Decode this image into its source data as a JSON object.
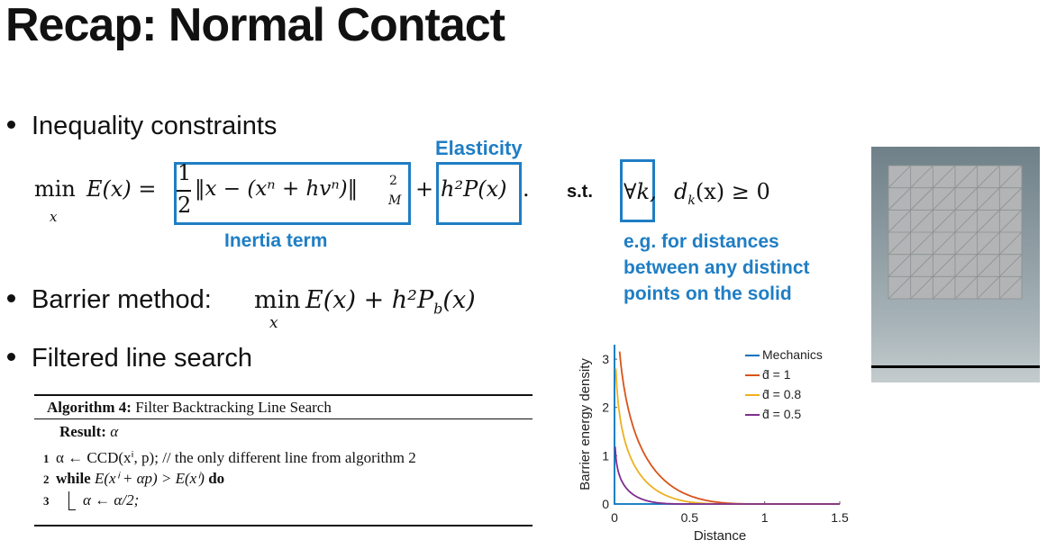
{
  "slide": {
    "title": "Recap: Normal Contact",
    "bullets": [
      "Inequality constraints",
      "Barrier method:",
      "Filtered line search"
    ]
  },
  "objective": {
    "min_op": "min",
    "min_sub": "x",
    "lhs": "E(x) =",
    "frac_num": "1",
    "frac_den": "2",
    "inertia_expr": "‖x − (xⁿ + hvⁿ)‖",
    "inertia_sup": "2",
    "inertia_sub": "M",
    "plus": "+",
    "elastic_expr": "h²P(x)",
    "period": ".",
    "inertia_label": "Inertia term",
    "elasticity_label": "Elasticity",
    "st": "s.t.",
    "forall": "∀k,",
    "constraint": "d",
    "constraint_sub": "k",
    "constraint_rest": "(x) ≥ 0",
    "example_lines": [
      "e.g. for distances",
      "between any distinct",
      "points on the solid"
    ]
  },
  "barrier": {
    "min_op": "min",
    "min_sub": "x",
    "expr": "E(x) + h²P",
    "expr_sub": "b",
    "expr_end": "(x)"
  },
  "algorithm": {
    "title_bold": "Algorithm 4:",
    "title_rest": "Filter Backtracking Line Search",
    "result_bold": "Result:",
    "result_val": "α",
    "lines": [
      {
        "num": "1",
        "text": "α ← CCD(xⁱ, p);  // the only different line from algorithm 2"
      },
      {
        "num": "2",
        "kw": "while",
        "text": "E(xⁱ + αp) > E(xⁱ)",
        "kw2": "do"
      },
      {
        "num": "3",
        "text": "α ← α/2;"
      }
    ]
  },
  "chart_data": {
    "type": "line",
    "xlabel": "Distance",
    "ylabel": "Barrier energy density",
    "xlim": [
      0,
      1.5
    ],
    "ylim": [
      0,
      3.3
    ],
    "xticks": [
      "0",
      "0.5",
      "1",
      "1.5"
    ],
    "yticks": [
      "0",
      "1",
      "2",
      "3"
    ],
    "legend_position": "top-right",
    "series": [
      {
        "name": "Mechanics",
        "color": "#0072bd",
        "dhat": 0
      },
      {
        "name": "d̂ = 1",
        "color": "#d95319",
        "dhat": 1
      },
      {
        "name": "d̂ = 0.8",
        "color": "#edb120",
        "dhat": 0.8
      },
      {
        "name": "d̂ = 0.5",
        "color": "#7e2f8e",
        "dhat": 0.5
      }
    ]
  }
}
